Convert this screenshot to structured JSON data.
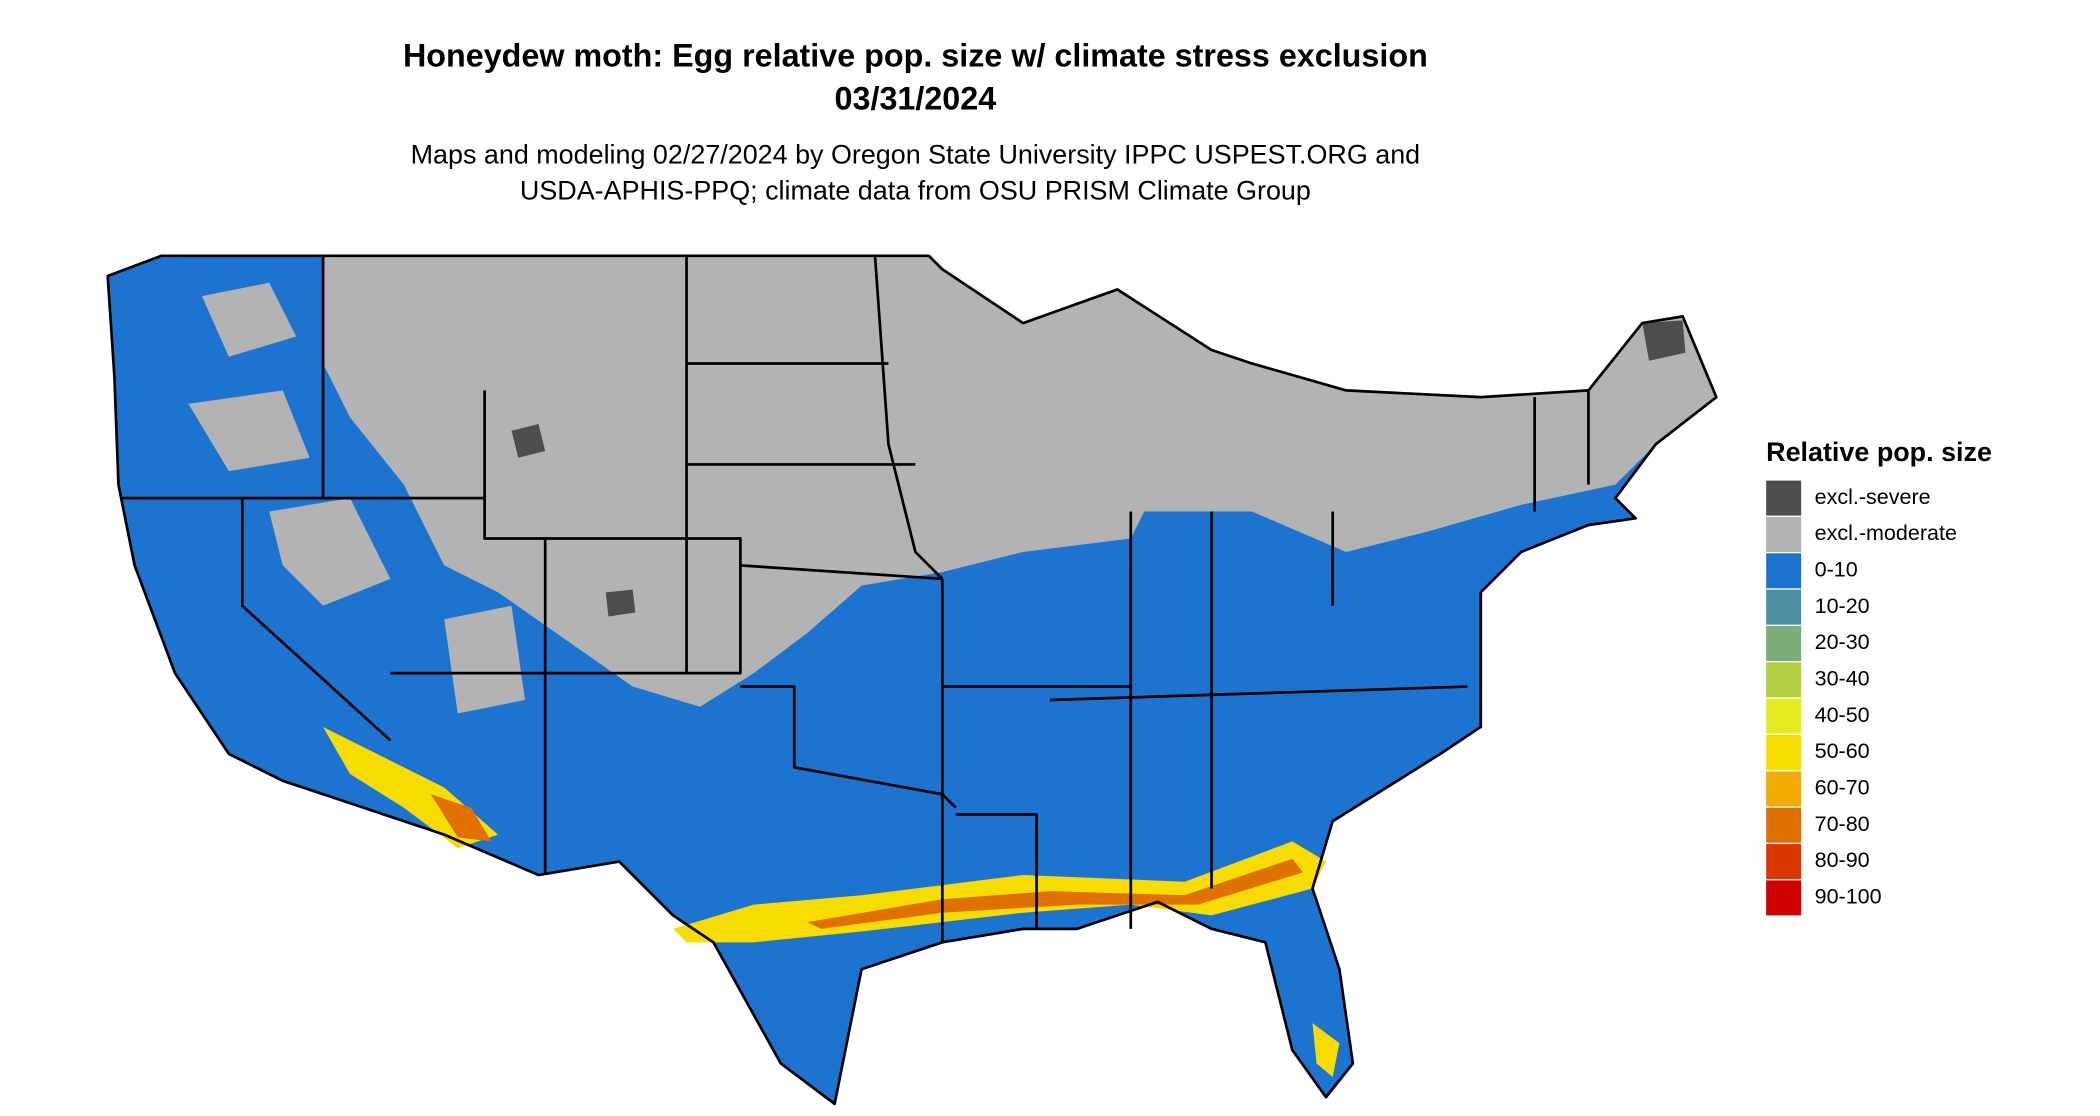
{
  "title": "Honeydew moth: Egg relative pop. size w/ climate stress exclusion",
  "date": "03/31/2024",
  "subtitle": [
    "Maps and modeling 02/27/2024 by Oregon State University IPPC USPEST.ORG and",
    "USDA-APHIS-PPQ; climate data from OSU PRISM Climate Group"
  ],
  "legend": {
    "title": "Relative pop. size",
    "items": [
      {
        "label": "excl.-severe",
        "color": "#4d4d4d"
      },
      {
        "label": "excl.-moderate",
        "color": "#b3b3b3"
      },
      {
        "label": "0-10",
        "color": "#1c74d0"
      },
      {
        "label": "10-20",
        "color": "#4a90a0"
      },
      {
        "label": "20-30",
        "color": "#7aad78"
      },
      {
        "label": "30-40",
        "color": "#b2cf40"
      },
      {
        "label": "40-50",
        "color": "#e2ec20"
      },
      {
        "label": "50-60",
        "color": "#f7dc00"
      },
      {
        "label": "60-70",
        "color": "#f0aa00"
      },
      {
        "label": "70-80",
        "color": "#e07000"
      },
      {
        "label": "80-90",
        "color": "#da3800"
      },
      {
        "label": "90-100",
        "color": "#d00000"
      }
    ]
  }
}
